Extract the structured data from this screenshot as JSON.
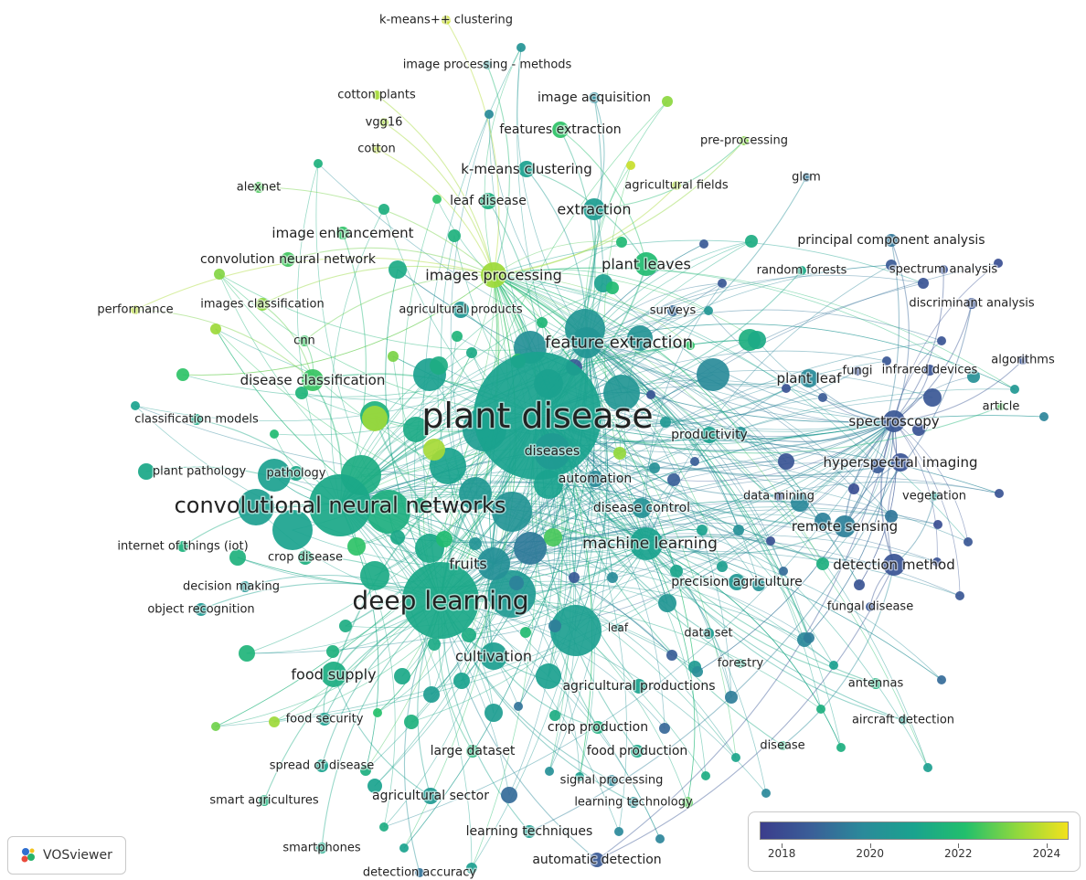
{
  "app": {
    "name": "VOSviewer"
  },
  "legend": {
    "ticks": [
      {
        "label": "2018",
        "value": 2018
      },
      {
        "label": "2020",
        "value": 2020
      },
      {
        "label": "2022",
        "value": 2022
      },
      {
        "label": "2024",
        "value": 2024
      }
    ],
    "min": 2017.5,
    "max": 2024.5,
    "colors": [
      "#3b3d8c",
      "#3a5f98",
      "#2a8a9a",
      "#1aa38e",
      "#22bf6c",
      "#8fd83e",
      "#f2e21d"
    ]
  },
  "keywords": [
    {
      "label": "plant disease",
      "year": 2021.0,
      "weight": 10
    },
    {
      "label": "convolutional neural networks",
      "year": 2021.2,
      "weight": 7
    },
    {
      "label": "deep learning",
      "year": 2021.2,
      "weight": 9
    },
    {
      "label": "feature extraction",
      "year": 2020.4,
      "weight": 4
    },
    {
      "label": "machine learning",
      "year": 2021.0,
      "weight": 4
    },
    {
      "label": "fruits",
      "year": 2020.1,
      "weight": 4
    },
    {
      "label": "cultivation",
      "year": 2020.8,
      "weight": 4
    },
    {
      "label": "food supply",
      "year": 2021.4,
      "weight": 3
    },
    {
      "label": "images processing",
      "year": 2023.5,
      "weight": 3
    },
    {
      "label": "plant leaves",
      "year": 2022.0,
      "weight": 3
    },
    {
      "label": "extraction",
      "year": 2020.7,
      "weight": 3
    },
    {
      "label": "image enhancement",
      "year": 2022.3,
      "weight": 2
    },
    {
      "label": "disease classification",
      "year": 2022.4,
      "weight": 3
    },
    {
      "label": "spectroscopy",
      "year": 2018.4,
      "weight": 3
    },
    {
      "label": "hyperspectral imaging",
      "year": 2018.3,
      "weight": 2
    },
    {
      "label": "remote sensing",
      "year": 2019.6,
      "weight": 2
    },
    {
      "label": "detection method",
      "year": 2018.3,
      "weight": 3
    },
    {
      "label": "precision agriculture",
      "year": 2020.5,
      "weight": 2
    },
    {
      "label": "plant leaf",
      "year": 2019.9,
      "weight": 2
    },
    {
      "label": "productivity",
      "year": 2020.9,
      "weight": 2
    },
    {
      "label": "automation",
      "year": 2019.9,
      "weight": 2
    },
    {
      "label": "diseases",
      "year": 2020.6,
      "weight": 3
    },
    {
      "label": "disease control",
      "year": 2020.2,
      "weight": 2
    },
    {
      "label": "k-means clustering",
      "year": 2020.9,
      "weight": 2
    },
    {
      "label": "features extraction",
      "year": 2022.3,
      "weight": 2
    },
    {
      "label": "leaf disease",
      "year": 2021.5,
      "weight": 2
    },
    {
      "label": "convolution neural network",
      "year": 2022.5,
      "weight": 2
    },
    {
      "label": "images classification",
      "year": 2023.3,
      "weight": 1
    },
    {
      "label": "agricultural products",
      "year": 2020.5,
      "weight": 2
    },
    {
      "label": "surveys",
      "year": 2018.9,
      "weight": 1
    },
    {
      "label": "cnn",
      "year": 2022.4,
      "weight": 1
    },
    {
      "label": "alexnet",
      "year": 2022.6,
      "weight": 1
    },
    {
      "label": "performance",
      "year": 2023.8,
      "weight": 1
    },
    {
      "label": "classification models",
      "year": 2021.3,
      "weight": 1
    },
    {
      "label": "plant pathology",
      "year": 2021.2,
      "weight": 1
    },
    {
      "label": "pathology",
      "year": 2021.2,
      "weight": 2
    },
    {
      "label": "internet of things (iot)",
      "year": 2021.6,
      "weight": 1
    },
    {
      "label": "crop disease",
      "year": 2021.5,
      "weight": 2
    },
    {
      "label": "decision making",
      "year": 2020.4,
      "weight": 1
    },
    {
      "label": "object recognition",
      "year": 2020.6,
      "weight": 1
    },
    {
      "label": "food security",
      "year": 2020.9,
      "weight": 1
    },
    {
      "label": "spread of disease",
      "year": 2021.0,
      "weight": 1
    },
    {
      "label": "smart agricultures",
      "year": 2021.6,
      "weight": 1
    },
    {
      "label": "smartphones",
      "year": 2021.2,
      "weight": 1
    },
    {
      "label": "detection accuracy",
      "year": 2019.2,
      "weight": 1
    },
    {
      "label": "agricultural sector",
      "year": 2020.6,
      "weight": 2
    },
    {
      "label": "learning techniques",
      "year": 2020.8,
      "weight": 1
    },
    {
      "label": "automatic detection",
      "year": 2018.5,
      "weight": 1
    },
    {
      "label": "large dataset",
      "year": 2021.8,
      "weight": 1
    },
    {
      "label": "signal processing",
      "year": 2019.8,
      "weight": 1
    },
    {
      "label": "learning technology",
      "year": 2020.2,
      "weight": 1
    },
    {
      "label": "food production",
      "year": 2021.2,
      "weight": 1
    },
    {
      "label": "crop production",
      "year": 2021.5,
      "weight": 1
    },
    {
      "label": "agricultural productions",
      "year": 2021.0,
      "weight": 2
    },
    {
      "label": "leaf",
      "year": 2020.8,
      "weight": 1
    },
    {
      "label": "data set",
      "year": 2020.7,
      "weight": 1
    },
    {
      "label": "forestry",
      "year": 2021.3,
      "weight": 1
    },
    {
      "label": "antennas",
      "year": 2021.6,
      "weight": 2
    },
    {
      "label": "aircraft detection",
      "year": 2020.8,
      "weight": 1
    },
    {
      "label": "disease",
      "year": 2021.6,
      "weight": 1
    },
    {
      "label": "fungal disease",
      "year": 2018.4,
      "weight": 1
    },
    {
      "label": "vegetation",
      "year": 2020.7,
      "weight": 1
    },
    {
      "label": "data mining",
      "year": 2018.3,
      "weight": 1
    },
    {
      "label": "infrared devices",
      "year": 2018.3,
      "weight": 1
    },
    {
      "label": "fungi",
      "year": 2018.2,
      "weight": 1
    },
    {
      "label": "algorithms",
      "year": 2018.3,
      "weight": 1
    },
    {
      "label": "article",
      "year": 2022.6,
      "weight": 1
    },
    {
      "label": "discriminant analysis",
      "year": 2018.3,
      "weight": 1
    },
    {
      "label": "spectrum analysis",
      "year": 2018.3,
      "weight": 1
    },
    {
      "label": "random forests",
      "year": 2021.3,
      "weight": 1
    },
    {
      "label": "principal component analysis",
      "year": 2019.3,
      "weight": 1
    },
    {
      "label": "glcm",
      "year": 2019.3,
      "weight": 1
    },
    {
      "label": "agricultural fields",
      "year": 2023.7,
      "weight": 1
    },
    {
      "label": "pre-processing",
      "year": 2023.2,
      "weight": 1
    },
    {
      "label": "image acquisition",
      "year": 2019.8,
      "weight": 1
    },
    {
      "label": "image processing - methods",
      "year": 2020.3,
      "weight": 1
    },
    {
      "label": "k-means++ clustering",
      "year": 2024.0,
      "weight": 1
    },
    {
      "label": "cotton plants",
      "year": 2023.6,
      "weight": 1
    },
    {
      "label": "vgg16",
      "year": 2023.6,
      "weight": 1
    },
    {
      "label": "cotton",
      "year": 2023.8,
      "weight": 1
    }
  ]
}
